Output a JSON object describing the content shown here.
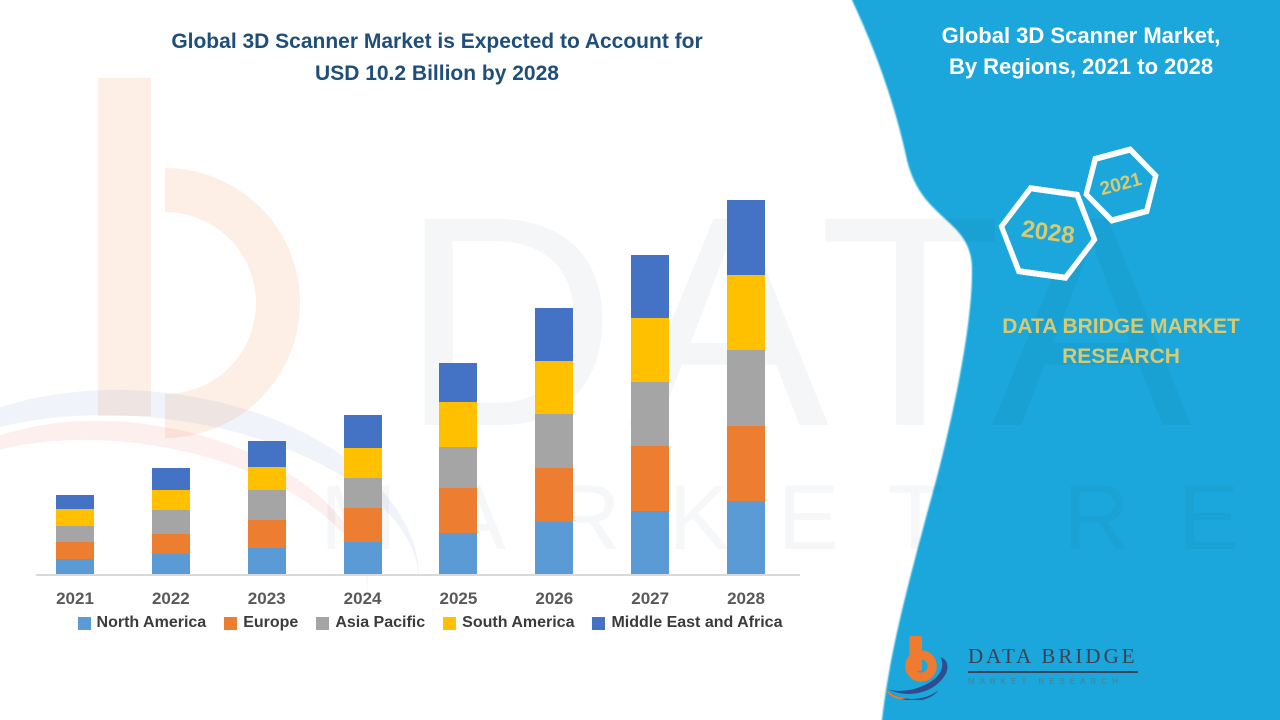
{
  "colors": {
    "panel_cyan": "#1BA7DB",
    "title_blue": "#1F4E79",
    "khaki": "#D6CA72",
    "axis_line": "#D9D9D9",
    "legend_text": "#3B3B3B",
    "year_label": "#595959"
  },
  "main_title": {
    "line1": "Global 3D Scanner Market is Expected to Account for",
    "line2": "USD 10.2 Billion by 2028"
  },
  "chart_data": {
    "type": "bar",
    "stacked": true,
    "title": "Global 3D Scanner Market is Expected to Account for USD 10.2 Billion by 2028",
    "unit": "USD Billion",
    "categories": [
      "2021",
      "2022",
      "2023",
      "2024",
      "2025",
      "2026",
      "2027",
      "2028"
    ],
    "series": [
      {
        "name": "North America",
        "color": "#5B9BD5",
        "values": [
          0.41,
          0.55,
          0.72,
          0.86,
          1.13,
          1.41,
          1.71,
          2.0
        ]
      },
      {
        "name": "Europe",
        "color": "#ED7D31",
        "values": [
          0.45,
          0.55,
          0.76,
          0.93,
          1.22,
          1.47,
          1.78,
          2.05
        ]
      },
      {
        "name": "Asia Pacific",
        "color": "#A5A5A5",
        "values": [
          0.45,
          0.64,
          0.82,
          0.83,
          1.12,
          1.49,
          1.74,
          2.06
        ]
      },
      {
        "name": "South America",
        "color": "#FFC000",
        "values": [
          0.45,
          0.56,
          0.61,
          0.83,
          1.23,
          1.44,
          1.76,
          2.05
        ]
      },
      {
        "name": "Middle East and Africa",
        "color": "#4472C4",
        "values": [
          0.4,
          0.59,
          0.73,
          0.89,
          1.07,
          1.45,
          1.71,
          2.05
        ]
      }
    ],
    "ylim": [
      0,
      10.5
    ],
    "grid": false,
    "y_axis_visible": false,
    "legend_position": "bottom",
    "total_2028_usd_billion": 10.2
  },
  "side_panel": {
    "title_line1": "Global 3D Scanner Market,",
    "title_line2": "By Regions, 2021 to 2028",
    "hexagon_small_label": "2021",
    "hexagon_large_label": "2028",
    "brand_line1": "DATA BRIDGE MARKET",
    "brand_line2": "RESEARCH"
  },
  "footer_logo": {
    "title": "DATA BRIDGE",
    "subtitle": "MARKET RESEARCH"
  },
  "watermark": {
    "line1": "DATA BRIDGE",
    "line2": "MARKET RESEARCH"
  }
}
